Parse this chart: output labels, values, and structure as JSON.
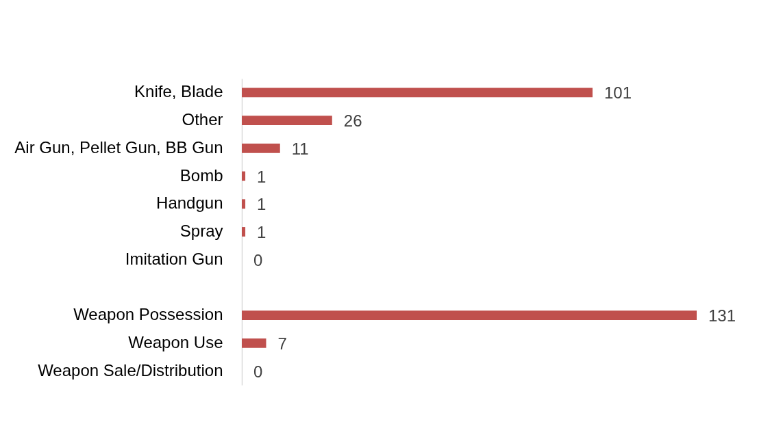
{
  "chart_data": {
    "type": "bar",
    "orientation": "horizontal",
    "data_labels": true,
    "color": "#c0504d",
    "categories": [
      "Knife, Blade",
      "Other",
      "Air Gun, Pellet Gun, BB Gun",
      "Bomb",
      "Handgun",
      "Spray",
      "Imitation Gun",
      null,
      "Weapon Possession",
      "Weapon Use",
      "Weapon Sale/Distribution"
    ],
    "values": [
      101,
      26,
      11,
      1,
      1,
      1,
      0,
      null,
      131,
      7,
      0
    ]
  }
}
